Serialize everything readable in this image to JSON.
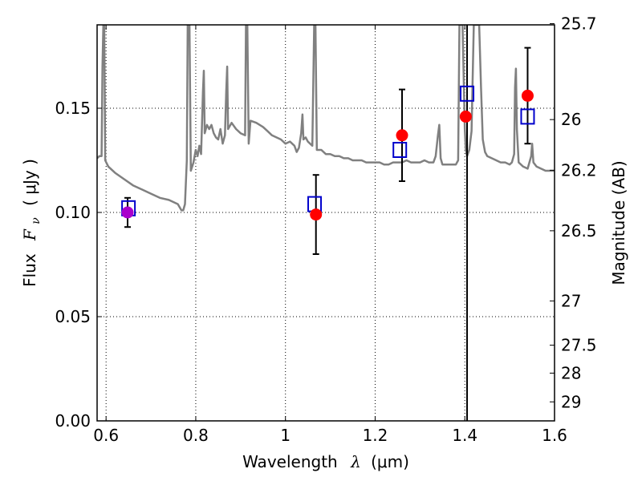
{
  "chart_data": {
    "type": "scatter",
    "xlabel": {
      "prefix": "Wavelength",
      "lambda": "λ",
      "unit": "(μm)"
    },
    "ylabel": {
      "prefix": "Flux",
      "math": "F",
      "sub": "ν",
      "unit": "( μJy )"
    },
    "y2label": "Magnitude (AB)",
    "xlim": [
      0.58,
      1.6
    ],
    "ylim": [
      0.0,
      0.19
    ],
    "grid": true,
    "x_ticks": [
      {
        "value": 0.6,
        "label": "0.6"
      },
      {
        "value": 0.8,
        "label": "0.8"
      },
      {
        "value": 1.0,
        "label": "1"
      },
      {
        "value": 1.2,
        "label": "1.2"
      },
      {
        "value": 1.4,
        "label": "1.4"
      },
      {
        "value": 1.6,
        "label": "1.6"
      }
    ],
    "y_ticks": [
      {
        "value": 0.0,
        "label": "0.00"
      },
      {
        "value": 0.05,
        "label": "0.05"
      },
      {
        "value": 0.1,
        "label": "0.10"
      },
      {
        "value": 0.15,
        "label": "0.15"
      }
    ],
    "mag_ticks": [
      {
        "value": 25.7,
        "label": "25.7"
      },
      {
        "value": 26.0,
        "label": "26"
      },
      {
        "value": 26.2,
        "label": "26.2"
      },
      {
        "value": 26.5,
        "label": "26.5"
      },
      {
        "value": 27.0,
        "label": "27"
      },
      {
        "value": 27.5,
        "label": "27.5"
      },
      {
        "value": 28.0,
        "label": "28"
      },
      {
        "value": 29.0,
        "label": "29"
      }
    ],
    "vertical_line": {
      "x": 1.405,
      "color": "#000000"
    },
    "observed": {
      "color": "#ff0000",
      "points": [
        {
          "x": 0.648,
          "y": 0.1,
          "err": 0.007,
          "color": "#aa00cc"
        },
        {
          "x": 1.068,
          "y": 0.099,
          "err": 0.019
        },
        {
          "x": 1.26,
          "y": 0.137,
          "err": 0.022
        },
        {
          "x": 1.402,
          "y": 0.146,
          "err": 0.0
        },
        {
          "x": 1.54,
          "y": 0.156,
          "err": 0.023
        }
      ]
    },
    "model_photometry": {
      "color": "#0000cc",
      "points": [
        {
          "x": 0.65,
          "y": 0.102
        },
        {
          "x": 1.065,
          "y": 0.104
        },
        {
          "x": 1.255,
          "y": 0.13
        },
        {
          "x": 1.405,
          "y": 0.157
        },
        {
          "x": 1.54,
          "y": 0.146
        }
      ]
    },
    "spectrum": {
      "color": "#808080",
      "points": [
        [
          0.58,
          0.126
        ],
        [
          0.585,
          0.127
        ],
        [
          0.59,
          0.127
        ],
        [
          0.592,
          0.17
        ],
        [
          0.594,
          0.19
        ],
        [
          0.596,
          0.19
        ],
        [
          0.598,
          0.125
        ],
        [
          0.605,
          0.122
        ],
        [
          0.62,
          0.119
        ],
        [
          0.64,
          0.116
        ],
        [
          0.66,
          0.113
        ],
        [
          0.68,
          0.111
        ],
        [
          0.7,
          0.109
        ],
        [
          0.72,
          0.107
        ],
        [
          0.74,
          0.106
        ],
        [
          0.76,
          0.104
        ],
        [
          0.768,
          0.101
        ],
        [
          0.772,
          0.101
        ],
        [
          0.776,
          0.104
        ],
        [
          0.78,
          0.125
        ],
        [
          0.782,
          0.19
        ],
        [
          0.786,
          0.19
        ],
        [
          0.789,
          0.12
        ],
        [
          0.795,
          0.124
        ],
        [
          0.8,
          0.13
        ],
        [
          0.804,
          0.127
        ],
        [
          0.808,
          0.132
        ],
        [
          0.812,
          0.128
        ],
        [
          0.816,
          0.158
        ],
        [
          0.818,
          0.168
        ],
        [
          0.82,
          0.138
        ],
        [
          0.825,
          0.142
        ],
        [
          0.83,
          0.14
        ],
        [
          0.835,
          0.142
        ],
        [
          0.84,
          0.138
        ],
        [
          0.845,
          0.136
        ],
        [
          0.85,
          0.135
        ],
        [
          0.855,
          0.14
        ],
        [
          0.86,
          0.133
        ],
        [
          0.865,
          0.137
        ],
        [
          0.868,
          0.158
        ],
        [
          0.87,
          0.17
        ],
        [
          0.872,
          0.14
        ],
        [
          0.88,
          0.143
        ],
        [
          0.89,
          0.14
        ],
        [
          0.9,
          0.138
        ],
        [
          0.91,
          0.137
        ],
        [
          0.912,
          0.19
        ],
        [
          0.915,
          0.19
        ],
        [
          0.918,
          0.133
        ],
        [
          0.922,
          0.144
        ],
        [
          0.935,
          0.143
        ],
        [
          0.95,
          0.141
        ],
        [
          0.96,
          0.139
        ],
        [
          0.97,
          0.137
        ],
        [
          0.98,
          0.136
        ],
        [
          0.99,
          0.135
        ],
        [
          1.0,
          0.133
        ],
        [
          1.01,
          0.134
        ],
        [
          1.02,
          0.132
        ],
        [
          1.025,
          0.129
        ],
        [
          1.03,
          0.131
        ],
        [
          1.035,
          0.138
        ],
        [
          1.038,
          0.147
        ],
        [
          1.04,
          0.135
        ],
        [
          1.045,
          0.136
        ],
        [
          1.05,
          0.134
        ],
        [
          1.06,
          0.132
        ],
        [
          1.064,
          0.19
        ],
        [
          1.067,
          0.19
        ],
        [
          1.07,
          0.13
        ],
        [
          1.08,
          0.13
        ],
        [
          1.09,
          0.128
        ],
        [
          1.1,
          0.128
        ],
        [
          1.11,
          0.127
        ],
        [
          1.12,
          0.127
        ],
        [
          1.13,
          0.126
        ],
        [
          1.14,
          0.126
        ],
        [
          1.15,
          0.125
        ],
        [
          1.16,
          0.125
        ],
        [
          1.17,
          0.125
        ],
        [
          1.18,
          0.124
        ],
        [
          1.19,
          0.124
        ],
        [
          1.2,
          0.124
        ],
        [
          1.21,
          0.124
        ],
        [
          1.22,
          0.123
        ],
        [
          1.23,
          0.123
        ],
        [
          1.24,
          0.124
        ],
        [
          1.25,
          0.124
        ],
        [
          1.26,
          0.124
        ],
        [
          1.27,
          0.125
        ],
        [
          1.28,
          0.124
        ],
        [
          1.29,
          0.124
        ],
        [
          1.3,
          0.124
        ],
        [
          1.31,
          0.125
        ],
        [
          1.32,
          0.124
        ],
        [
          1.33,
          0.124
        ],
        [
          1.335,
          0.127
        ],
        [
          1.34,
          0.137
        ],
        [
          1.343,
          0.142
        ],
        [
          1.346,
          0.126
        ],
        [
          1.35,
          0.123
        ],
        [
          1.36,
          0.123
        ],
        [
          1.37,
          0.123
        ],
        [
          1.38,
          0.123
        ],
        [
          1.385,
          0.125
        ],
        [
          1.388,
          0.19
        ],
        [
          1.392,
          0.19
        ],
        [
          1.395,
          0.19
        ],
        [
          1.4,
          0.14
        ],
        [
          1.402,
          0.13
        ],
        [
          1.405,
          0.127
        ],
        [
          1.41,
          0.13
        ],
        [
          1.415,
          0.139
        ],
        [
          1.42,
          0.19
        ],
        [
          1.432,
          0.19
        ],
        [
          1.436,
          0.16
        ],
        [
          1.44,
          0.135
        ],
        [
          1.445,
          0.129
        ],
        [
          1.45,
          0.127
        ],
        [
          1.46,
          0.126
        ],
        [
          1.47,
          0.125
        ],
        [
          1.48,
          0.124
        ],
        [
          1.49,
          0.124
        ],
        [
          1.5,
          0.123
        ],
        [
          1.505,
          0.124
        ],
        [
          1.51,
          0.128
        ],
        [
          1.512,
          0.16
        ],
        [
          1.514,
          0.169
        ],
        [
          1.516,
          0.14
        ],
        [
          1.52,
          0.124
        ],
        [
          1.53,
          0.122
        ],
        [
          1.54,
          0.121
        ],
        [
          1.548,
          0.127
        ],
        [
          1.55,
          0.133
        ],
        [
          1.553,
          0.124
        ],
        [
          1.56,
          0.122
        ],
        [
          1.57,
          0.121
        ],
        [
          1.58,
          0.12
        ],
        [
          1.59,
          0.12
        ],
        [
          1.6,
          0.12
        ]
      ]
    }
  }
}
